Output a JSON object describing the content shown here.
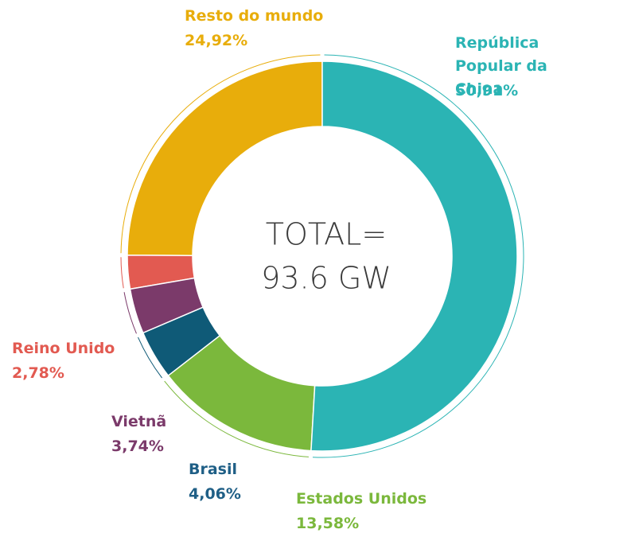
{
  "chart_data": {
    "type": "pie",
    "donut": true,
    "categories": [
      "República Popular da China",
      "Estados Unidos",
      "Brasil",
      "Vietnã",
      "Reino Unido",
      "Resto do mundo"
    ],
    "values": [
      50.91,
      13.58,
      4.06,
      3.74,
      2.78,
      24.92
    ],
    "value_labels": [
      "50,91%",
      "13,58%",
      "4,06%",
      "3,74%",
      "2,78%",
      "24,92%"
    ],
    "colors": [
      "#2bb4b4",
      "#7bb83c",
      "#0f5a77",
      "#7b3a6a",
      "#e25a51",
      "#e8ad0b"
    ],
    "annotations": [
      "TOTAL=",
      "93.6 GW"
    ]
  }
}
